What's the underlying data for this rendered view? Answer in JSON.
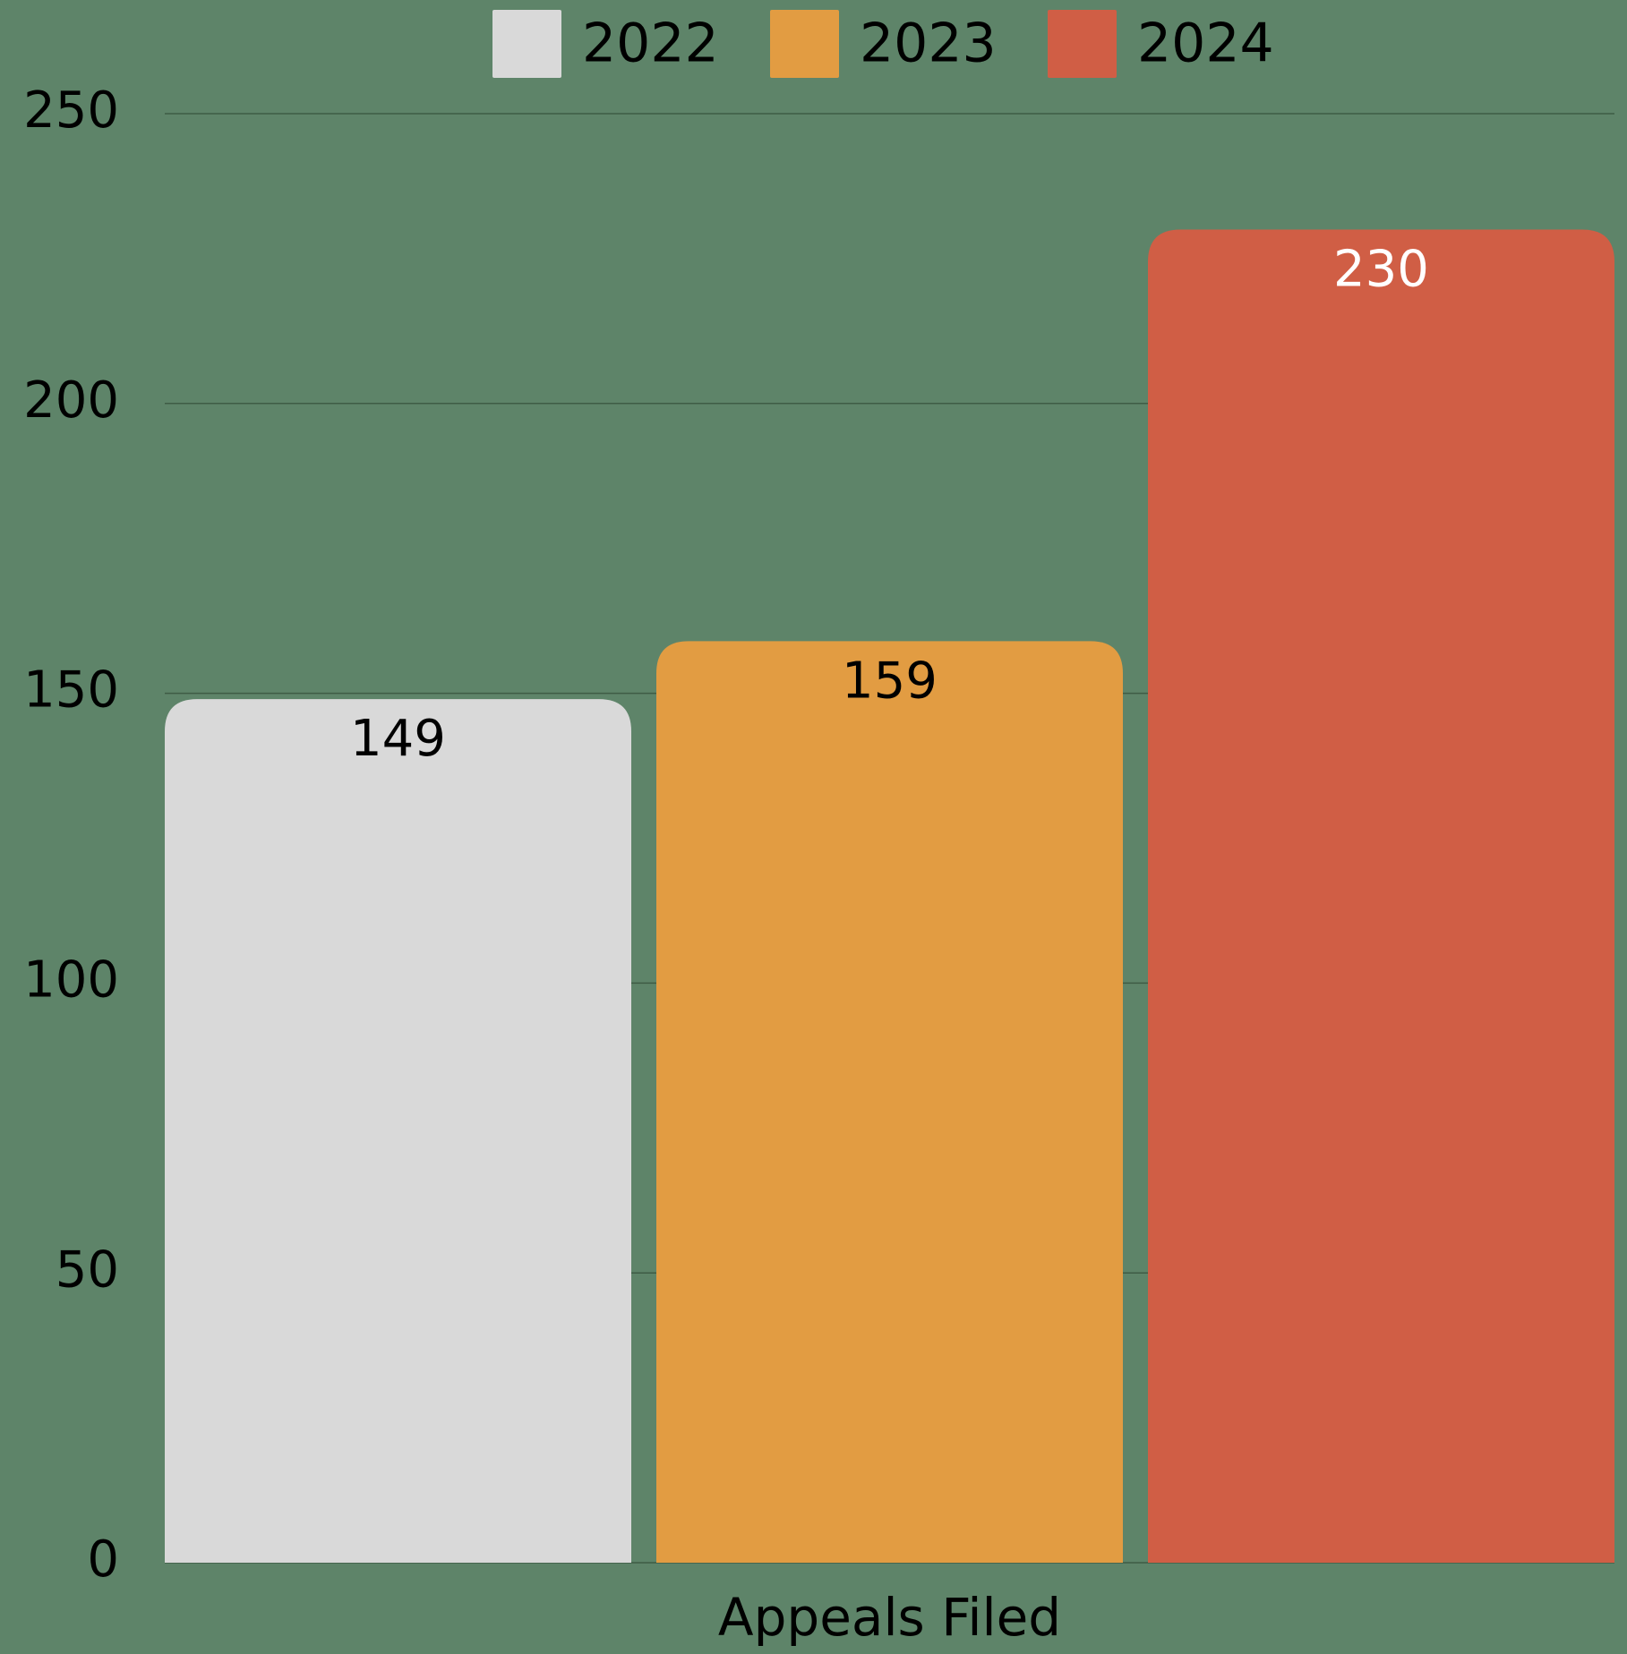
{
  "chart_data": {
    "type": "grouped_bar",
    "categories": [
      "Appeals Filed"
    ],
    "series": [
      {
        "name": "2022",
        "color": "#d9d9d9",
        "label_color": "#000000",
        "values": [
          149
        ]
      },
      {
        "name": "2023",
        "color": "#e29c42",
        "label_color": "#000000",
        "values": [
          159
        ]
      },
      {
        "name": "2024",
        "color": "#d05e45",
        "label_color": "#ffffff",
        "values": [
          230
        ]
      }
    ],
    "ylim": [
      0,
      250
    ],
    "yticks": [
      0,
      50,
      100,
      150,
      200,
      250
    ],
    "grid": true,
    "legend": "top",
    "data_labels": true
  }
}
